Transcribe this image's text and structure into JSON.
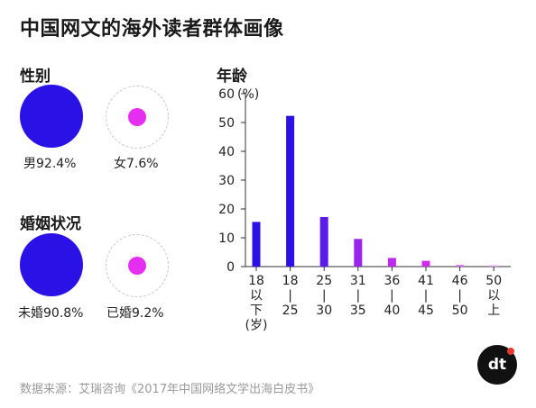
{
  "title": "中国网文的海外读者群体画像",
  "gender": {
    "title": "性别",
    "male_label": "男92.4%",
    "female_label": "女7.6%",
    "male_pct": 92.4,
    "female_pct": 7.6
  },
  "marital": {
    "title": "婚姻状况",
    "unmarried_label": "未婚90.8%",
    "married_label": "已婚9.2%",
    "unmarried_pct": 90.8,
    "married_pct": 9.2
  },
  "colors": {
    "primary": "#2a12e6",
    "secondary": "#e52ff0",
    "axis": "#333333"
  },
  "chart_data": {
    "type": "bar",
    "title": "年龄",
    "ylabel": "(%)",
    "ylim": [
      0,
      60
    ],
    "yticks": [
      0,
      10,
      20,
      30,
      40,
      50,
      60
    ],
    "categories": [
      "18以下(岁)",
      "18-25",
      "25-30",
      "31-35",
      "36-40",
      "41-45",
      "46-50",
      "50以上"
    ],
    "category_label_lines": [
      [
        "18",
        "以",
        "下",
        "(岁)"
      ],
      [
        "18",
        "|",
        "25"
      ],
      [
        "25",
        "|",
        "30"
      ],
      [
        "31",
        "|",
        "35"
      ],
      [
        "36",
        "|",
        "40"
      ],
      [
        "41",
        "|",
        "45"
      ],
      [
        "46",
        "|",
        "50"
      ],
      [
        "50",
        "以",
        "上"
      ]
    ],
    "values": [
      15.5,
      52.3,
      17.2,
      9.6,
      3.0,
      2.0,
      0.6,
      0.5
    ],
    "bar_colors": [
      "#2a12e6",
      "#2a12e6",
      "#5b1be8",
      "#9a24ec",
      "#bd2aee",
      "#d02cf0",
      "#dc6ff3",
      "#e3a6f5"
    ],
    "grid": false,
    "legend": "none"
  },
  "source": "数据来源：艾瑞咨询《2017年中国网络文学出海白皮书》",
  "logo_text": "dt"
}
